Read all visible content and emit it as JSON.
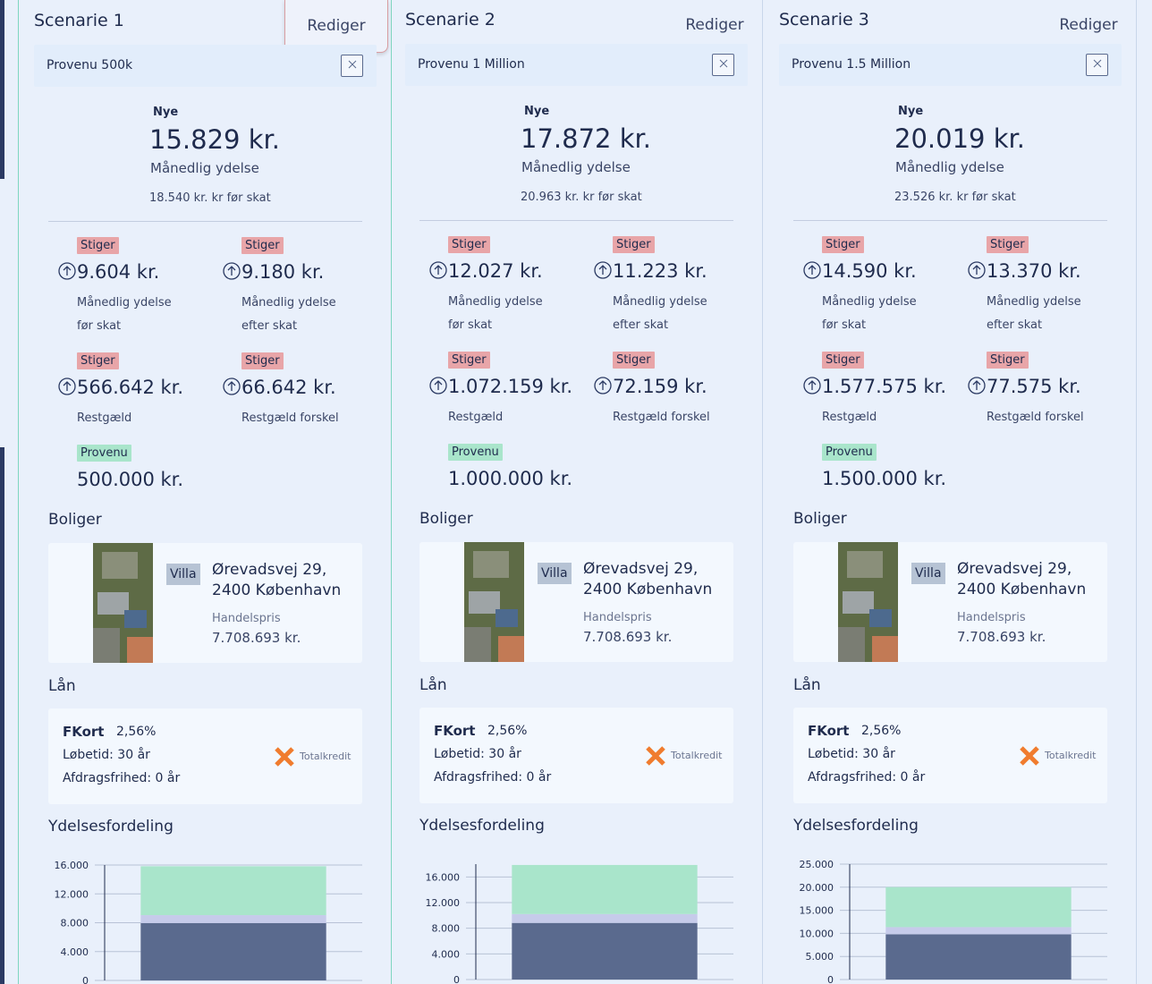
{
  "scenarios": [
    {
      "title": "Scenarie 1",
      "edit": "Rediger",
      "name": "Provenu 500k",
      "new_label": "Nye",
      "monthly": "15.829 kr.",
      "monthly_label": "Månedlig ydelse",
      "before_tax": "18.540 kr. kr før skat",
      "stats": [
        {
          "badge": "Stiger",
          "value": "9.604 kr.",
          "label": "Månedlig ydelse før skat"
        },
        {
          "badge": "Stiger",
          "value": "9.180 kr.",
          "label": "Månedlig ydelse efter skat"
        },
        {
          "badge": "Stiger",
          "value": "566.642 kr.",
          "label": "Restgæld"
        },
        {
          "badge": "Stiger",
          "value": "66.642 kr.",
          "label": "Restgæld forskel"
        }
      ],
      "provenu": {
        "badge": "Provenu",
        "value": "500.000 kr."
      },
      "homes_title": "Boliger",
      "home": {
        "type": "Villa",
        "address_line1": "Ørevadsvej 29,",
        "address_line2": "2400 København",
        "price_label": "Handelspris",
        "price": "7.708.693 kr."
      },
      "loan_title": "Lån",
      "loan": {
        "name": "FKort",
        "rate": "2,56%",
        "term": "Løbetid: 30 år",
        "interest_only": "Afdragsfrihed: 0 år",
        "lender": "Totalkredit"
      },
      "chart_title": "Ydelsesfordeling"
    },
    {
      "title": "Scenarie 2",
      "edit": "Rediger",
      "name": "Provenu 1 Million",
      "new_label": "Nye",
      "monthly": "17.872 kr.",
      "monthly_label": "Månedlig ydelse",
      "before_tax": "20.963 kr. kr før skat",
      "stats": [
        {
          "badge": "Stiger",
          "value": "12.027 kr.",
          "label": "Månedlig ydelse før skat"
        },
        {
          "badge": "Stiger",
          "value": "11.223 kr.",
          "label": "Månedlig ydelse efter skat"
        },
        {
          "badge": "Stiger",
          "value": "1.072.159 kr.",
          "label": "Restgæld"
        },
        {
          "badge": "Stiger",
          "value": "72.159 kr.",
          "label": "Restgæld forskel"
        }
      ],
      "provenu": {
        "badge": "Provenu",
        "value": "1.000.000 kr."
      },
      "homes_title": "Boliger",
      "home": {
        "type": "Villa",
        "address_line1": "Ørevadsvej 29,",
        "address_line2": "2400 København",
        "price_label": "Handelspris",
        "price": "7.708.693 kr."
      },
      "loan_title": "Lån",
      "loan": {
        "name": "FKort",
        "rate": "2,56%",
        "term": "Løbetid: 30 år",
        "interest_only": "Afdragsfrihed: 0 år",
        "lender": "Totalkredit"
      },
      "chart_title": "Ydelsesfordeling"
    },
    {
      "title": "Scenarie 3",
      "edit": "Rediger",
      "name": "Provenu 1.5 Million",
      "new_label": "Nye",
      "monthly": "20.019 kr.",
      "monthly_label": "Månedlig ydelse",
      "before_tax": "23.526 kr. kr før skat",
      "stats": [
        {
          "badge": "Stiger",
          "value": "14.590 kr.",
          "label": "Månedlig ydelse før skat"
        },
        {
          "badge": "Stiger",
          "value": "13.370 kr.",
          "label": "Månedlig ydelse efter skat"
        },
        {
          "badge": "Stiger",
          "value": "1.577.575 kr.",
          "label": "Restgæld"
        },
        {
          "badge": "Stiger",
          "value": "77.575 kr.",
          "label": "Restgæld forskel"
        }
      ],
      "provenu": {
        "badge": "Provenu",
        "value": "1.500.000 kr."
      },
      "homes_title": "Boliger",
      "home": {
        "type": "Villa",
        "address_line1": "Ørevadsvej 29,",
        "address_line2": "2400 København",
        "price_label": "Handelspris",
        "price": "7.708.693 kr."
      },
      "loan_title": "Lån",
      "loan": {
        "name": "FKort",
        "rate": "2,56%",
        "term": "Løbetid: 30 år",
        "interest_only": "Afdragsfrihed: 0 år",
        "lender": "Totalkredit"
      },
      "chart_title": "Ydelsesfordeling"
    }
  ],
  "chart_data": [
    {
      "type": "bar",
      "stacked": true,
      "categories": [
        null
      ],
      "series": [
        {
          "color": "#5a6a8e",
          "values": [
            7950
          ]
        },
        {
          "color": "#c6cbea",
          "values": [
            1100
          ]
        },
        {
          "color": "#a9e5cb",
          "values": [
            6780
          ]
        }
      ],
      "ylim": [
        0,
        16000
      ],
      "yticks": [
        0,
        {
          "value": 4000,
          "label": "4.000"
        },
        {
          "value": 8000,
          "label": "8.000"
        },
        {
          "value": 12000,
          "label": "12.000"
        },
        {
          "value": 16000,
          "label": "16.000"
        }
      ],
      "grid": true
    },
    {
      "type": "bar",
      "stacked": true,
      "categories": [
        null
      ],
      "series": [
        {
          "color": "#5a6a8e",
          "values": [
            8830
          ]
        },
        {
          "color": "#c6cbea",
          "values": [
            1380
          ]
        },
        {
          "color": "#a9e5cb",
          "values": [
            7660
          ]
        }
      ],
      "ylim": [
        0,
        18000
      ],
      "yticks": [
        0,
        {
          "value": 4000,
          "label": "4.000"
        },
        {
          "value": 8000,
          "label": "8.000"
        },
        {
          "value": 12000,
          "label": "12.000"
        },
        {
          "value": 16000,
          "label": "16.000"
        }
      ],
      "grid": true
    },
    {
      "type": "bar",
      "stacked": true,
      "categories": [
        null
      ],
      "series": [
        {
          "color": "#5a6a8e",
          "values": [
            9800
          ]
        },
        {
          "color": "#c6cbea",
          "values": [
            1550
          ]
        },
        {
          "color": "#a9e5cb",
          "values": [
            8670
          ]
        }
      ],
      "ylim": [
        0,
        25000
      ],
      "yticks": [
        0,
        {
          "value": 5000,
          "label": "5.000"
        },
        {
          "value": 10000,
          "label": "10.000"
        },
        {
          "value": 15000,
          "label": "15.000"
        },
        {
          "value": 20000,
          "label": "20.000"
        },
        {
          "value": 25000,
          "label": "25.000"
        }
      ],
      "grid": true
    }
  ]
}
